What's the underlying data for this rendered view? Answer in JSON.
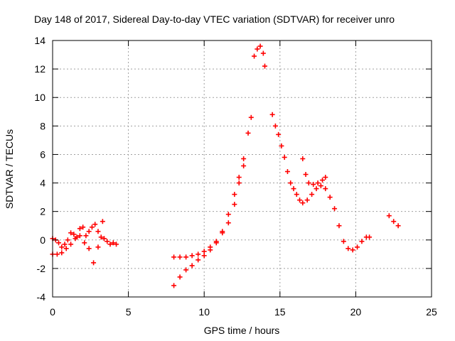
{
  "chart_data": {
    "type": "scatter",
    "title": "Day 148 of 2017, Sidereal Day-to-day VTEC variation (SDTVAR) for receiver unro",
    "xlabel": "GPS time / hours",
    "ylabel": "SDTVAR / TECUs",
    "xlim": [
      0,
      25
    ],
    "ylim": [
      -4,
      14
    ],
    "xticks": [
      "0",
      "5",
      "10",
      "15",
      "20",
      "25"
    ],
    "yticks": [
      "-4",
      "-2",
      "0",
      "2",
      "4",
      "6",
      "8",
      "10",
      "12",
      "14"
    ],
    "grid": true,
    "marker": "+",
    "series": [
      {
        "name": "SDTVAR",
        "color": "#ff0000",
        "x": [
          0.0,
          0.2,
          0.4,
          0.6,
          0.8,
          1.0,
          1.2,
          1.4,
          1.6,
          1.8,
          2.0,
          2.2,
          2.4,
          2.6,
          2.8,
          3.0,
          3.2,
          3.4,
          3.6,
          3.8,
          4.0,
          4.2,
          0.0,
          0.3,
          0.6,
          0.9,
          1.2,
          1.5,
          1.8,
          2.1,
          2.4,
          2.7,
          3.0,
          3.3,
          8.0,
          8.4,
          8.8,
          9.2,
          9.6,
          10.0,
          10.4,
          10.8,
          11.2,
          11.6,
          12.0,
          12.3,
          12.6,
          12.9,
          13.1,
          8.0,
          8.4,
          8.8,
          9.2,
          9.6,
          10.0,
          10.4,
          10.8,
          11.2,
          11.6,
          12.0,
          12.3,
          12.6,
          13.3,
          13.5,
          13.7,
          13.9,
          14.0,
          14.5,
          14.7,
          14.9,
          15.1,
          15.3,
          15.5,
          15.7,
          15.9,
          16.1,
          16.3,
          16.5,
          16.8,
          17.1,
          17.4,
          17.7,
          18.0,
          18.3,
          18.6,
          18.9,
          19.2,
          19.5,
          19.8,
          20.1,
          20.4,
          20.7,
          20.9,
          16.5,
          16.7,
          16.9,
          17.2,
          17.5,
          17.8,
          18.0,
          22.2,
          22.5,
          22.8
        ],
        "y": [
          0.1,
          0.0,
          -0.2,
          -0.5,
          -0.3,
          0.0,
          0.5,
          0.4,
          0.2,
          0.8,
          0.9,
          0.3,
          0.6,
          0.9,
          1.1,
          0.6,
          0.2,
          0.1,
          -0.1,
          -0.3,
          -0.2,
          -0.3,
          -1.0,
          -1.0,
          -0.9,
          -0.6,
          -0.3,
          0.1,
          0.3,
          -0.2,
          -0.6,
          -1.6,
          -0.5,
          1.3,
          -1.2,
          -1.2,
          -1.2,
          -1.1,
          -1.0,
          -0.8,
          -0.5,
          -0.1,
          0.5,
          1.2,
          2.5,
          4.0,
          5.7,
          7.5,
          8.6,
          -3.2,
          -2.6,
          -2.1,
          -1.8,
          -1.4,
          -1.1,
          -0.7,
          -0.2,
          0.6,
          1.8,
          3.2,
          4.4,
          5.2,
          12.9,
          13.4,
          13.6,
          13.1,
          12.2,
          8.8,
          8.0,
          7.4,
          6.6,
          5.8,
          4.8,
          4.0,
          3.6,
          3.2,
          2.8,
          2.6,
          2.8,
          3.2,
          3.6,
          3.8,
          3.6,
          3.0,
          2.2,
          1.0,
          -0.1,
          -0.6,
          -0.7,
          -0.5,
          -0.1,
          0.2,
          0.2,
          5.7,
          4.6,
          4.0,
          3.9,
          4.0,
          4.2,
          4.4,
          1.7,
          1.3,
          1.0
        ]
      }
    ]
  }
}
